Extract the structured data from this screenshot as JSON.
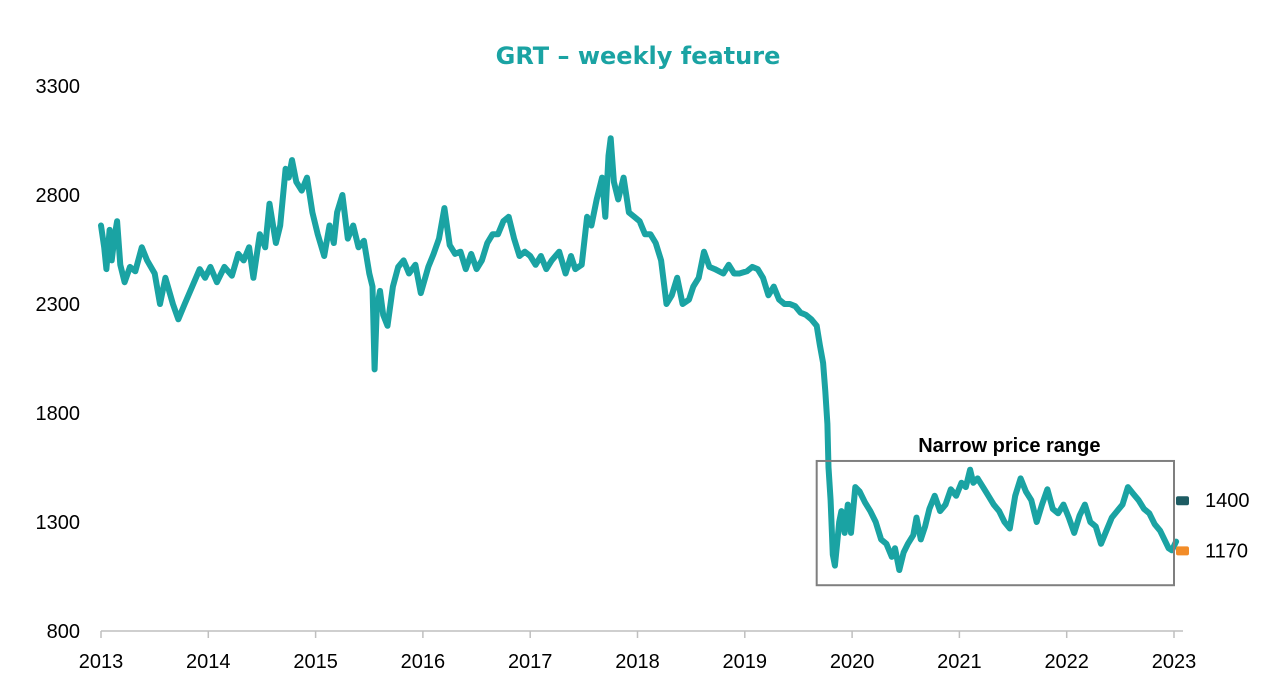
{
  "chart_data": {
    "type": "line",
    "title": "GRT – weekly feature",
    "xlabel": "",
    "ylabel": "",
    "xlim": [
      2013,
      2023.1
    ],
    "ylim": [
      800,
      3300
    ],
    "x_ticks": [
      "2013",
      "2014",
      "2015",
      "2016",
      "2017",
      "2018",
      "2019",
      "2020",
      "2021",
      "2022",
      "2023"
    ],
    "y_ticks": [
      800,
      1300,
      1800,
      2300,
      2800,
      3300
    ],
    "series": [
      {
        "name": "GRT",
        "color": "#1aa3a3",
        "points": [
          [
            2013.0,
            2660
          ],
          [
            2013.03,
            2560
          ],
          [
            2013.05,
            2460
          ],
          [
            2013.08,
            2640
          ],
          [
            2013.1,
            2500
          ],
          [
            2013.13,
            2620
          ],
          [
            2013.15,
            2680
          ],
          [
            2013.18,
            2480
          ],
          [
            2013.22,
            2400
          ],
          [
            2013.27,
            2470
          ],
          [
            2013.32,
            2450
          ],
          [
            2013.38,
            2560
          ],
          [
            2013.43,
            2500
          ],
          [
            2013.5,
            2440
          ],
          [
            2013.55,
            2300
          ],
          [
            2013.6,
            2420
          ],
          [
            2013.67,
            2300
          ],
          [
            2013.72,
            2230
          ],
          [
            2013.78,
            2300
          ],
          [
            2013.85,
            2380
          ],
          [
            2013.92,
            2460
          ],
          [
            2013.97,
            2420
          ],
          [
            2014.02,
            2470
          ],
          [
            2014.08,
            2400
          ],
          [
            2014.15,
            2470
          ],
          [
            2014.22,
            2430
          ],
          [
            2014.28,
            2530
          ],
          [
            2014.33,
            2500
          ],
          [
            2014.38,
            2560
          ],
          [
            2014.42,
            2420
          ],
          [
            2014.48,
            2620
          ],
          [
            2014.53,
            2560
          ],
          [
            2014.57,
            2760
          ],
          [
            2014.63,
            2580
          ],
          [
            2014.67,
            2660
          ],
          [
            2014.72,
            2920
          ],
          [
            2014.75,
            2880
          ],
          [
            2014.78,
            2960
          ],
          [
            2014.82,
            2860
          ],
          [
            2014.87,
            2820
          ],
          [
            2014.92,
            2880
          ],
          [
            2014.97,
            2720
          ],
          [
            2015.02,
            2620
          ],
          [
            2015.08,
            2520
          ],
          [
            2015.13,
            2660
          ],
          [
            2015.17,
            2580
          ],
          [
            2015.2,
            2720
          ],
          [
            2015.25,
            2800
          ],
          [
            2015.3,
            2600
          ],
          [
            2015.35,
            2660
          ],
          [
            2015.4,
            2560
          ],
          [
            2015.45,
            2590
          ],
          [
            2015.5,
            2440
          ],
          [
            2015.53,
            2380
          ],
          [
            2015.55,
            2000
          ],
          [
            2015.57,
            2280
          ],
          [
            2015.6,
            2360
          ],
          [
            2015.63,
            2250
          ],
          [
            2015.67,
            2200
          ],
          [
            2015.72,
            2380
          ],
          [
            2015.77,
            2470
          ],
          [
            2015.82,
            2500
          ],
          [
            2015.87,
            2440
          ],
          [
            2015.93,
            2480
          ],
          [
            2015.98,
            2350
          ],
          [
            2016.05,
            2470
          ],
          [
            2016.1,
            2530
          ],
          [
            2016.15,
            2600
          ],
          [
            2016.2,
            2740
          ],
          [
            2016.25,
            2570
          ],
          [
            2016.3,
            2530
          ],
          [
            2016.35,
            2540
          ],
          [
            2016.4,
            2460
          ],
          [
            2016.45,
            2530
          ],
          [
            2016.5,
            2460
          ],
          [
            2016.55,
            2500
          ],
          [
            2016.6,
            2580
          ],
          [
            2016.65,
            2620
          ],
          [
            2016.7,
            2620
          ],
          [
            2016.75,
            2680
          ],
          [
            2016.8,
            2700
          ],
          [
            2016.85,
            2600
          ],
          [
            2016.9,
            2520
          ],
          [
            2016.95,
            2540
          ],
          [
            2017.0,
            2520
          ],
          [
            2017.05,
            2480
          ],
          [
            2017.1,
            2520
          ],
          [
            2017.15,
            2460
          ],
          [
            2017.2,
            2500
          ],
          [
            2017.27,
            2540
          ],
          [
            2017.33,
            2440
          ],
          [
            2017.38,
            2520
          ],
          [
            2017.42,
            2460
          ],
          [
            2017.48,
            2480
          ],
          [
            2017.53,
            2700
          ],
          [
            2017.57,
            2660
          ],
          [
            2017.62,
            2780
          ],
          [
            2017.67,
            2880
          ],
          [
            2017.7,
            2700
          ],
          [
            2017.73,
            2980
          ],
          [
            2017.75,
            3060
          ],
          [
            2017.78,
            2860
          ],
          [
            2017.82,
            2780
          ],
          [
            2017.87,
            2880
          ],
          [
            2017.92,
            2720
          ],
          [
            2017.97,
            2700
          ],
          [
            2018.02,
            2680
          ],
          [
            2018.07,
            2620
          ],
          [
            2018.12,
            2620
          ],
          [
            2018.17,
            2580
          ],
          [
            2018.22,
            2500
          ],
          [
            2018.27,
            2300
          ],
          [
            2018.32,
            2340
          ],
          [
            2018.37,
            2420
          ],
          [
            2018.42,
            2300
          ],
          [
            2018.48,
            2320
          ],
          [
            2018.52,
            2380
          ],
          [
            2018.57,
            2420
          ],
          [
            2018.62,
            2540
          ],
          [
            2018.67,
            2470
          ],
          [
            2018.72,
            2460
          ],
          [
            2018.8,
            2440
          ],
          [
            2018.85,
            2480
          ],
          [
            2018.9,
            2440
          ],
          [
            2018.95,
            2440
          ],
          [
            2019.02,
            2450
          ],
          [
            2019.07,
            2470
          ],
          [
            2019.12,
            2460
          ],
          [
            2019.17,
            2420
          ],
          [
            2019.22,
            2340
          ],
          [
            2019.27,
            2380
          ],
          [
            2019.32,
            2320
          ],
          [
            2019.37,
            2300
          ],
          [
            2019.42,
            2300
          ],
          [
            2019.47,
            2290
          ],
          [
            2019.52,
            2260
          ],
          [
            2019.57,
            2250
          ],
          [
            2019.62,
            2230
          ],
          [
            2019.67,
            2200
          ],
          [
            2019.7,
            2110
          ],
          [
            2019.73,
            2030
          ],
          [
            2019.75,
            1900
          ],
          [
            2019.77,
            1750
          ],
          [
            2019.78,
            1550
          ],
          [
            2019.8,
            1400
          ],
          [
            2019.82,
            1150
          ],
          [
            2019.84,
            1100
          ],
          [
            2019.86,
            1200
          ],
          [
            2019.88,
            1300
          ],
          [
            2019.9,
            1350
          ],
          [
            2019.93,
            1250
          ],
          [
            2019.96,
            1380
          ],
          [
            2019.99,
            1250
          ],
          [
            2020.03,
            1460
          ],
          [
            2020.07,
            1440
          ],
          [
            2020.12,
            1390
          ],
          [
            2020.17,
            1350
          ],
          [
            2020.22,
            1300
          ],
          [
            2020.27,
            1220
          ],
          [
            2020.32,
            1200
          ],
          [
            2020.37,
            1140
          ],
          [
            2020.4,
            1180
          ],
          [
            2020.44,
            1080
          ],
          [
            2020.48,
            1160
          ],
          [
            2020.52,
            1200
          ],
          [
            2020.57,
            1240
          ],
          [
            2020.6,
            1320
          ],
          [
            2020.64,
            1220
          ],
          [
            2020.68,
            1280
          ],
          [
            2020.72,
            1360
          ],
          [
            2020.77,
            1420
          ],
          [
            2020.82,
            1350
          ],
          [
            2020.87,
            1380
          ],
          [
            2020.92,
            1450
          ],
          [
            2020.97,
            1420
          ],
          [
            2021.02,
            1480
          ],
          [
            2021.06,
            1460
          ],
          [
            2021.1,
            1540
          ],
          [
            2021.13,
            1480
          ],
          [
            2021.17,
            1500
          ],
          [
            2021.22,
            1460
          ],
          [
            2021.27,
            1420
          ],
          [
            2021.32,
            1380
          ],
          [
            2021.37,
            1350
          ],
          [
            2021.42,
            1300
          ],
          [
            2021.47,
            1270
          ],
          [
            2021.52,
            1420
          ],
          [
            2021.57,
            1500
          ],
          [
            2021.62,
            1440
          ],
          [
            2021.67,
            1400
          ],
          [
            2021.72,
            1300
          ],
          [
            2021.77,
            1380
          ],
          [
            2021.82,
            1450
          ],
          [
            2021.87,
            1360
          ],
          [
            2021.92,
            1340
          ],
          [
            2021.97,
            1380
          ],
          [
            2022.02,
            1320
          ],
          [
            2022.07,
            1250
          ],
          [
            2022.12,
            1330
          ],
          [
            2022.17,
            1380
          ],
          [
            2022.22,
            1300
          ],
          [
            2022.27,
            1280
          ],
          [
            2022.32,
            1200
          ],
          [
            2022.37,
            1260
          ],
          [
            2022.42,
            1320
          ],
          [
            2022.47,
            1350
          ],
          [
            2022.52,
            1380
          ],
          [
            2022.57,
            1460
          ],
          [
            2022.62,
            1430
          ],
          [
            2022.67,
            1400
          ],
          [
            2022.72,
            1360
          ],
          [
            2022.77,
            1340
          ],
          [
            2022.82,
            1290
          ],
          [
            2022.87,
            1260
          ],
          [
            2022.92,
            1210
          ],
          [
            2022.95,
            1180
          ],
          [
            2022.98,
            1170
          ],
          [
            2023.02,
            1210
          ]
        ]
      }
    ],
    "annotation": {
      "label": "Narrow price range",
      "x_range": [
        2019.67,
        2023.0
      ],
      "y_range": [
        1010,
        1580
      ]
    },
    "markers": [
      {
        "label": "1400",
        "value": 1400,
        "color": "#1d5c63"
      },
      {
        "label": "1170",
        "value": 1170,
        "color": "#f28c28"
      }
    ],
    "legend": "none",
    "grid": false
  }
}
